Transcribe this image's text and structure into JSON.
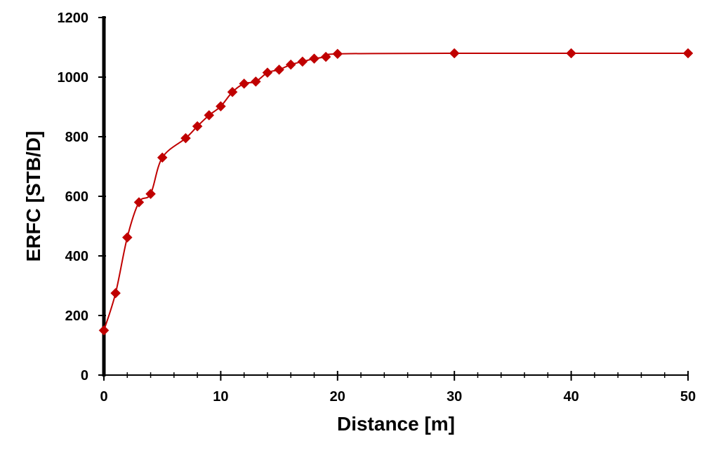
{
  "chart_data": {
    "type": "scatter",
    "title": "",
    "xlabel": "Distance [m]",
    "ylabel": "ERFC [STB/D]",
    "xlim": [
      0,
      50
    ],
    "ylim": [
      0,
      1200
    ],
    "x_ticks": [
      0,
      10,
      20,
      30,
      40,
      50
    ],
    "y_ticks": [
      0,
      200,
      400,
      600,
      800,
      1000,
      1200
    ],
    "x_minor_step": 2,
    "grid": false,
    "legend": "none",
    "line_smooth": true,
    "marker": "diamond",
    "series": [
      {
        "color": "#c00000",
        "x": [
          0,
          1,
          2,
          3,
          4,
          5,
          7,
          8,
          9,
          10,
          11,
          12,
          13,
          14,
          15,
          16,
          17,
          18,
          19,
          20,
          30,
          40,
          50
        ],
        "y": [
          150,
          275,
          462,
          580,
          608,
          730,
          795,
          835,
          872,
          902,
          950,
          978,
          985,
          1015,
          1025,
          1042,
          1052,
          1062,
          1068,
          1078,
          1080,
          1080,
          1080
        ]
      }
    ]
  }
}
